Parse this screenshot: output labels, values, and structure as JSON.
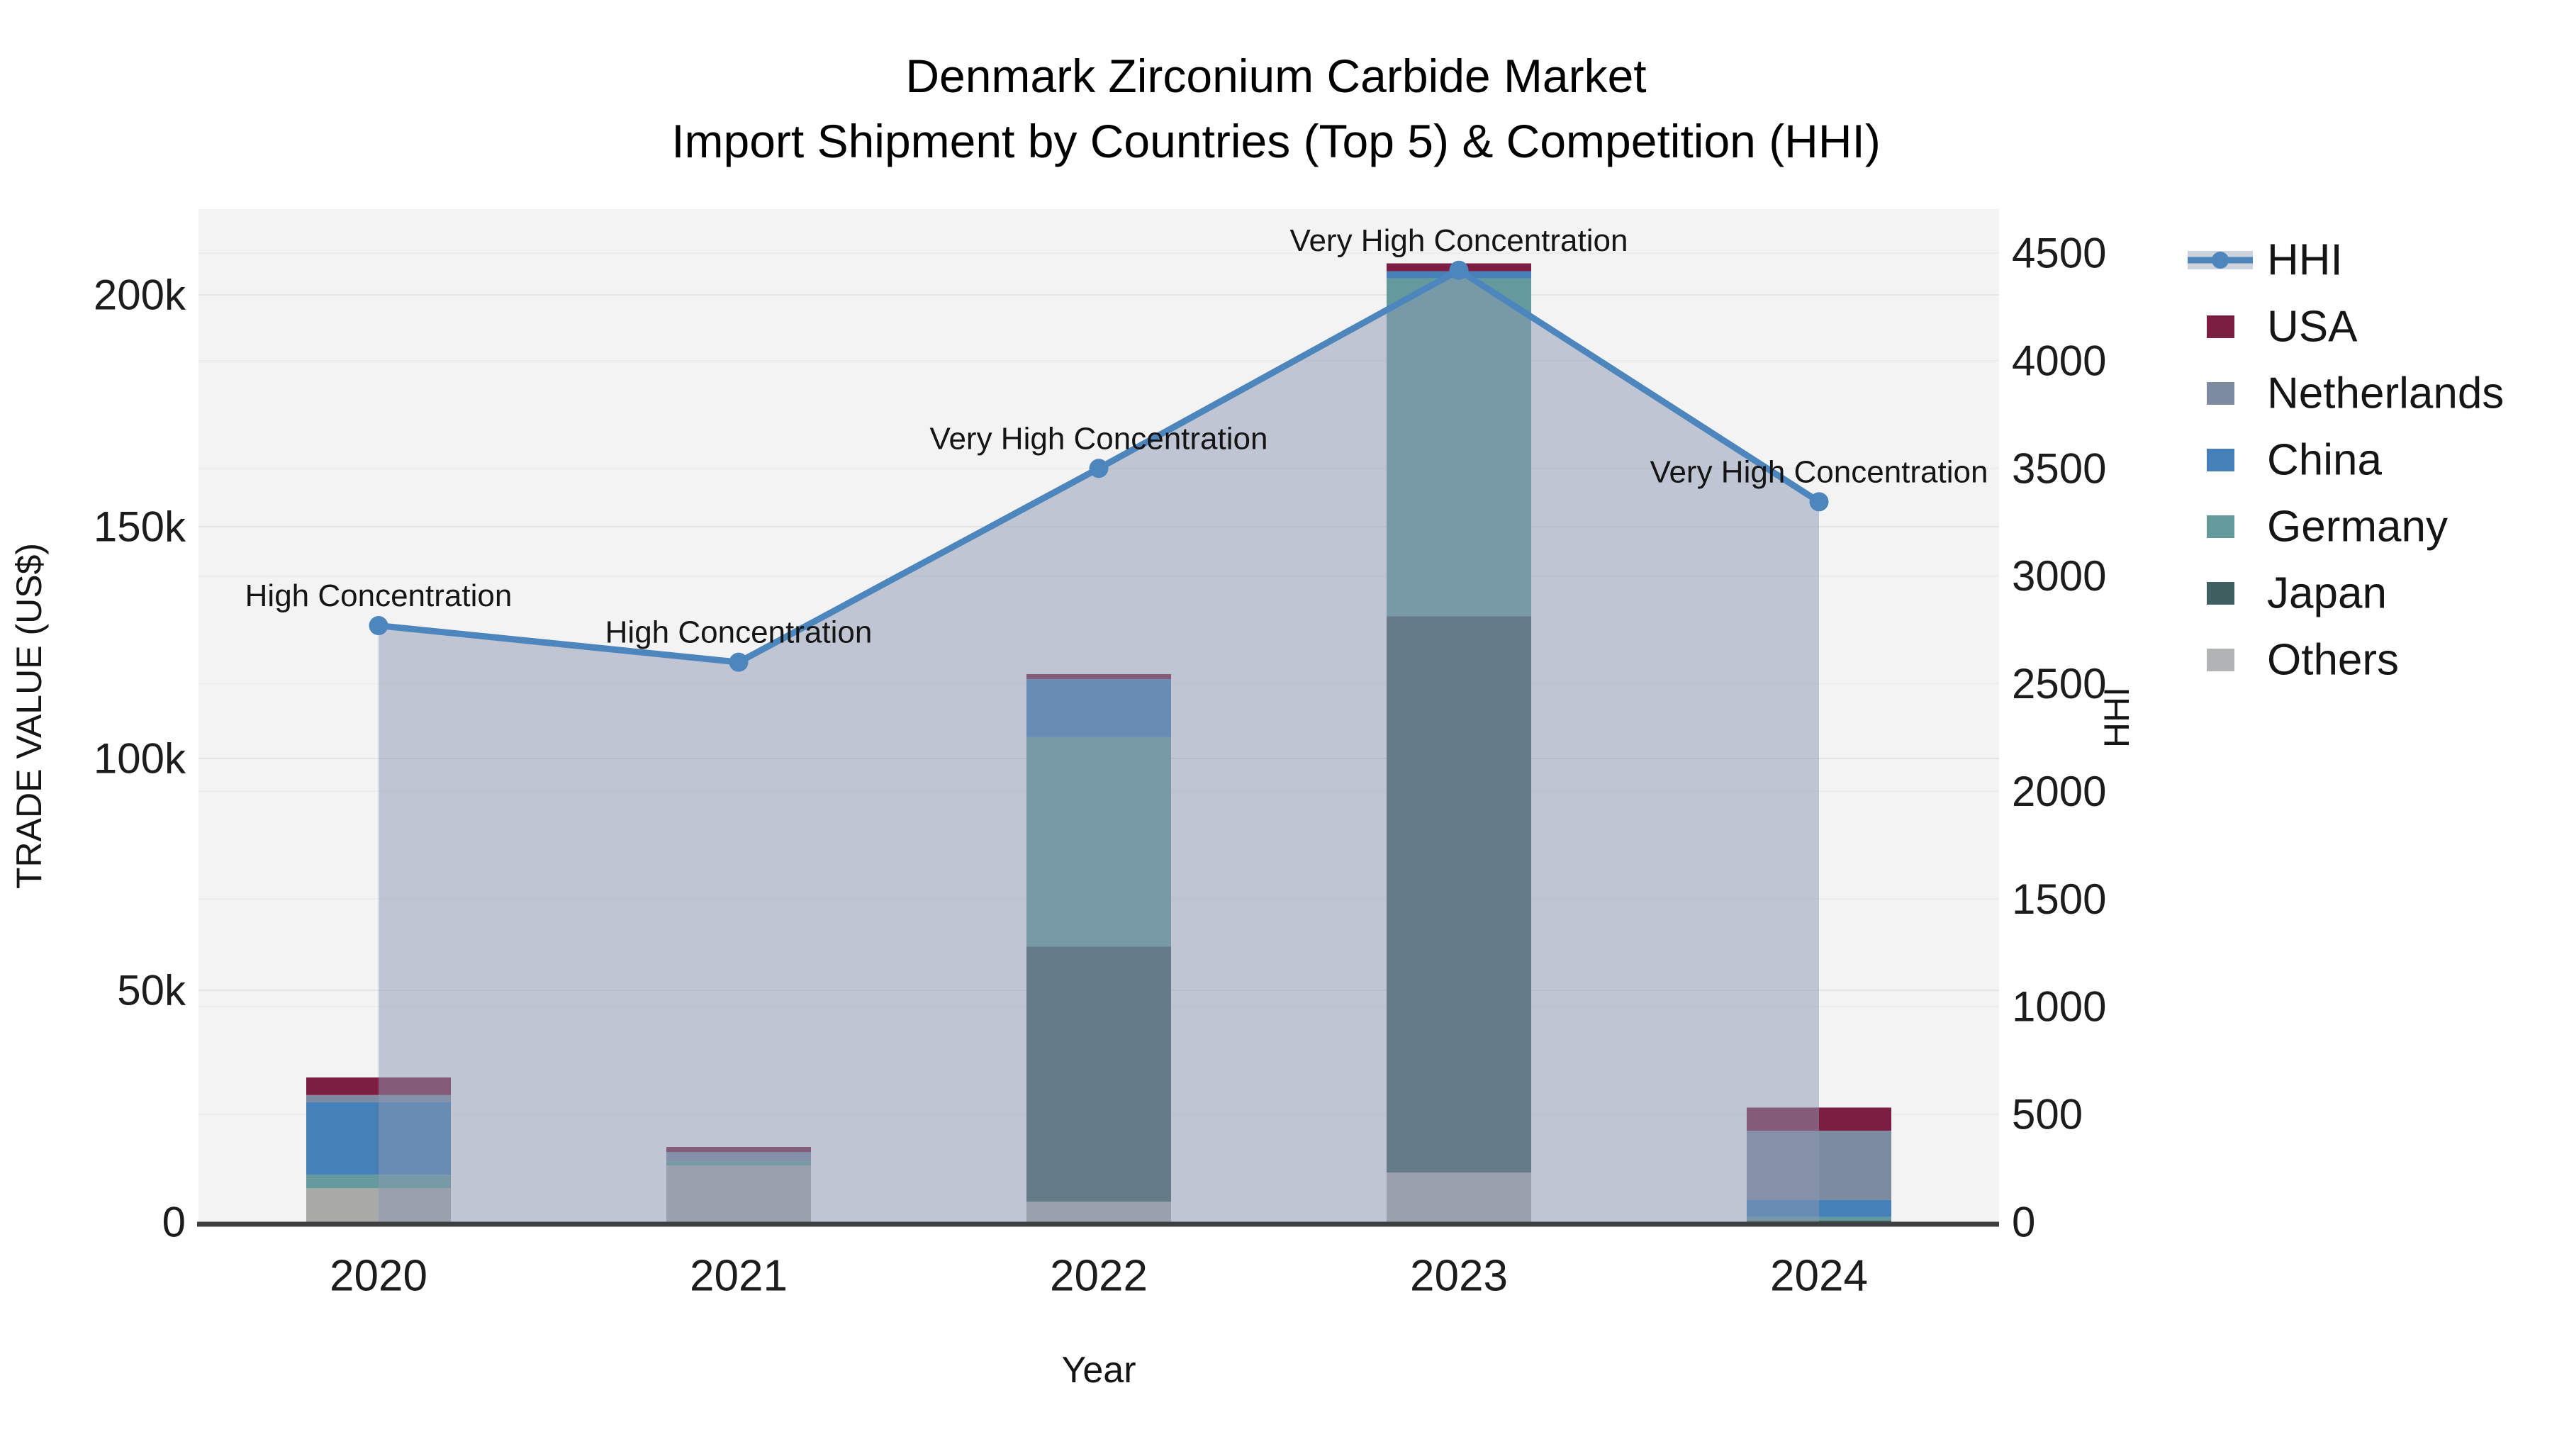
{
  "title": {
    "line1": "Denmark Zirconium Carbide Market",
    "line2": "Import Shipment by Countries (Top 5) & Competition (HHI)"
  },
  "axes": {
    "x": {
      "title": "Year",
      "categories": [
        "2020",
        "2021",
        "2022",
        "2023",
        "2024"
      ]
    },
    "y_left": {
      "title": "TRADE VALUE (US$)",
      "ticks": [
        {
          "label": "0",
          "value": 0
        },
        {
          "label": "50k",
          "value": 50000
        },
        {
          "label": "100k",
          "value": 100000
        },
        {
          "label": "150k",
          "value": 150000
        },
        {
          "label": "200k",
          "value": 200000
        }
      ]
    },
    "y_right": {
      "title": "HHI",
      "ticks": [
        {
          "label": "0",
          "value": 0
        },
        {
          "label": "500",
          "value": 500
        },
        {
          "label": "1000",
          "value": 1000
        },
        {
          "label": "1500",
          "value": 1500
        },
        {
          "label": "2000",
          "value": 2000
        },
        {
          "label": "2500",
          "value": 2500
        },
        {
          "label": "3000",
          "value": 3000
        },
        {
          "label": "3500",
          "value": 3500
        },
        {
          "label": "4000",
          "value": 4000
        },
        {
          "label": "4500",
          "value": 4500
        }
      ]
    }
  },
  "legend": {
    "items": [
      {
        "label": "HHI",
        "type": "line",
        "color": "#4d86bd",
        "band_color": "#ccd3dd"
      },
      {
        "label": "USA",
        "type": "box",
        "color": "#7c1e41"
      },
      {
        "label": "Netherlands",
        "type": "box",
        "color": "#7d8ba0"
      },
      {
        "label": "China",
        "type": "box",
        "color": "#4580b8"
      },
      {
        "label": "Germany",
        "type": "box",
        "color": "#649a9c"
      },
      {
        "label": "Japan",
        "type": "box",
        "color": "#3e5f60"
      },
      {
        "label": "Others",
        "type": "box",
        "color": "#b1b3b4"
      }
    ]
  },
  "chart_data": {
    "type": "bar",
    "subtype": "stacked-bars-with-line-overlay",
    "categories": [
      "2020",
      "2021",
      "2022",
      "2023",
      "2024"
    ],
    "bar_value_unit": "US$",
    "stack_order_bottom_to_top": [
      "Others",
      "Japan",
      "Germany",
      "China",
      "Netherlands",
      "USA"
    ],
    "series": [
      {
        "name": "Others",
        "color": "#a9aaa8",
        "values": [
          7300,
          12200,
          4400,
          10700,
          0
        ]
      },
      {
        "name": "Japan",
        "color": "#3e5f60",
        "values": [
          0,
          0,
          55000,
          120000,
          300
        ]
      },
      {
        "name": "Germany",
        "color": "#649a9c",
        "values": [
          2900,
          900,
          45200,
          72900,
          800
        ]
      },
      {
        "name": "China",
        "color": "#4580b8",
        "values": [
          15700,
          0,
          12500,
          1500,
          3700
        ]
      },
      {
        "name": "Netherlands",
        "color": "#7d8ba0",
        "values": [
          1500,
          2000,
          0,
          0,
          14900
        ]
      },
      {
        "name": "USA",
        "color": "#7c1e41",
        "values": [
          3800,
          1100,
          1100,
          1700,
          5000
        ]
      }
    ],
    "line_series": {
      "name": "HHI",
      "color": "#4d86bd",
      "fill_color": "rgba(139,152,175,0.5)",
      "values": [
        2770,
        2600,
        3500,
        4420,
        3345
      ]
    },
    "annotations": [
      {
        "x": "2020",
        "text": "High Concentration"
      },
      {
        "x": "2021",
        "text": "High Concentration"
      },
      {
        "x": "2022",
        "text": "Very High Concentration"
      },
      {
        "x": "2023",
        "text": "Very High Concentration"
      },
      {
        "x": "2024",
        "text": "Very High Concentration"
      }
    ],
    "ylim_left": [
      0,
      218500
    ],
    "ylim_right": [
      0,
      4704
    ],
    "xlabel": "Year",
    "ylabel_left": "TRADE VALUE (US$)",
    "ylabel_right": "HHI",
    "grid": true,
    "legend_position": "right"
  }
}
